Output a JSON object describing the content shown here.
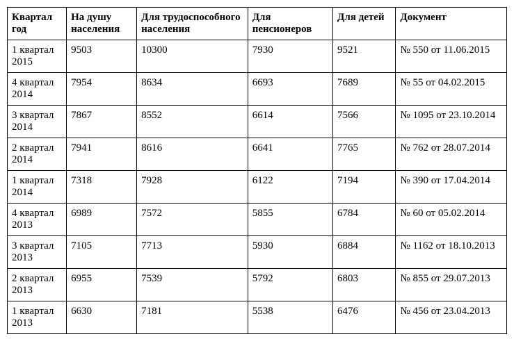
{
  "table": {
    "columns": [
      {
        "key": "period",
        "label": "Квартал год"
      },
      {
        "key": "per_capita",
        "label": "На душу населения"
      },
      {
        "key": "working",
        "label": "Для трудоспособного населения"
      },
      {
        "key": "pensioners",
        "label": "Для пенсионеров"
      },
      {
        "key": "children",
        "label": "Для детей"
      },
      {
        "key": "document",
        "label": "Документ"
      }
    ],
    "rows": [
      {
        "period": "1 квартал 2015",
        "per_capita": "9503",
        "working": "10300",
        "pensioners": "7930",
        "children": "9521",
        "document": "№ 550 от 11.06.2015"
      },
      {
        "period": "4 квартал 2014",
        "per_capita": "7954",
        "working": "8634",
        "pensioners": "6693",
        "children": "7689",
        "document": "№ 55 от 04.02.2015"
      },
      {
        "period": "3 квартал 2014",
        "per_capita": "7867",
        "working": "8552",
        "pensioners": "6614",
        "children": "7566",
        "document": "№ 1095 от 23.10.2014"
      },
      {
        "period": "2 квартал 2014",
        "per_capita": "7941",
        "working": "8616",
        "pensioners": "6641",
        "children": "7765",
        "document": "№ 762 от 28.07.2014"
      },
      {
        "period": "1 квартал 2014",
        "per_capita": "7318",
        "working": "7928",
        "pensioners": "6122",
        "children": "7194",
        "document": "№ 390 от 17.04.2014"
      },
      {
        "period": "4 квартал 2013",
        "per_capita": "6989",
        "working": "7572",
        "pensioners": "5855",
        "children": "6784",
        "document": "№ 60 от 05.02.2014"
      },
      {
        "period": "3 квартал 2013",
        "per_capita": "7105",
        "working": "7713",
        "pensioners": "5930",
        "children": "6884",
        "document": "№ 1162 от 18.10.2013"
      },
      {
        "period": "2 квартал 2013",
        "per_capita": "6955",
        "working": "7539",
        "pensioners": "5792",
        "children": "6803",
        "document": "№ 855 от 29.07.2013"
      },
      {
        "period": "1 квартал 2013",
        "per_capita": "6630",
        "working": "7181",
        "pensioners": "5538",
        "children": "6476",
        "document": "№ 456 от 23.04.2013"
      }
    ],
    "border_color": "#000000",
    "background_color": "#ffffff",
    "text_color": "#000000",
    "font_family": "Times New Roman",
    "header_fontsize": 15,
    "cell_fontsize": 15
  }
}
